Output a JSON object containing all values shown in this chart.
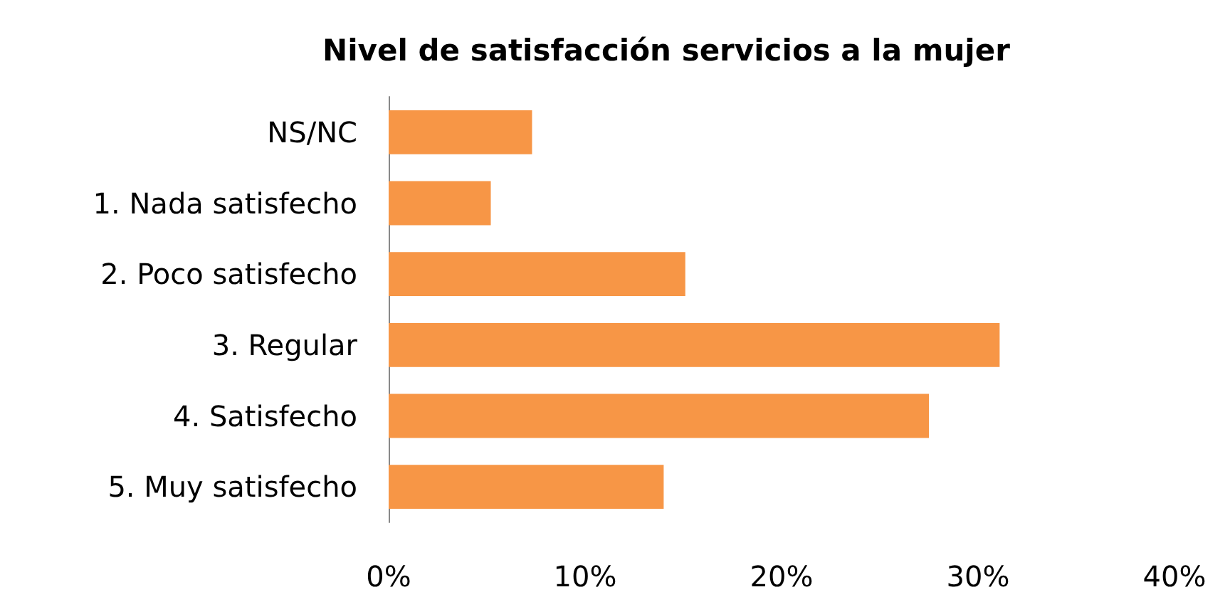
{
  "chart_data": {
    "type": "bar",
    "orientation": "horizontal",
    "title": "Nivel de satisfacción servicios a la mujer",
    "categories": [
      "NS/NC",
      "1. Nada satisfecho",
      "2. Poco satisfecho",
      "3. Regular",
      "4. Satisfecho",
      "5. Muy satisfecho"
    ],
    "values": [
      7.3,
      5.2,
      15.1,
      31.1,
      27.5,
      14.0
    ],
    "color": "#f79646",
    "xlim": [
      0,
      40
    ],
    "xticks": [
      {
        "value": 0,
        "label": "0%"
      },
      {
        "value": 10,
        "label": "10%"
      },
      {
        "value": 20,
        "label": "20%"
      },
      {
        "value": 30,
        "label": "30%"
      },
      {
        "value": 40,
        "label": "40%"
      }
    ],
    "grid": false
  }
}
